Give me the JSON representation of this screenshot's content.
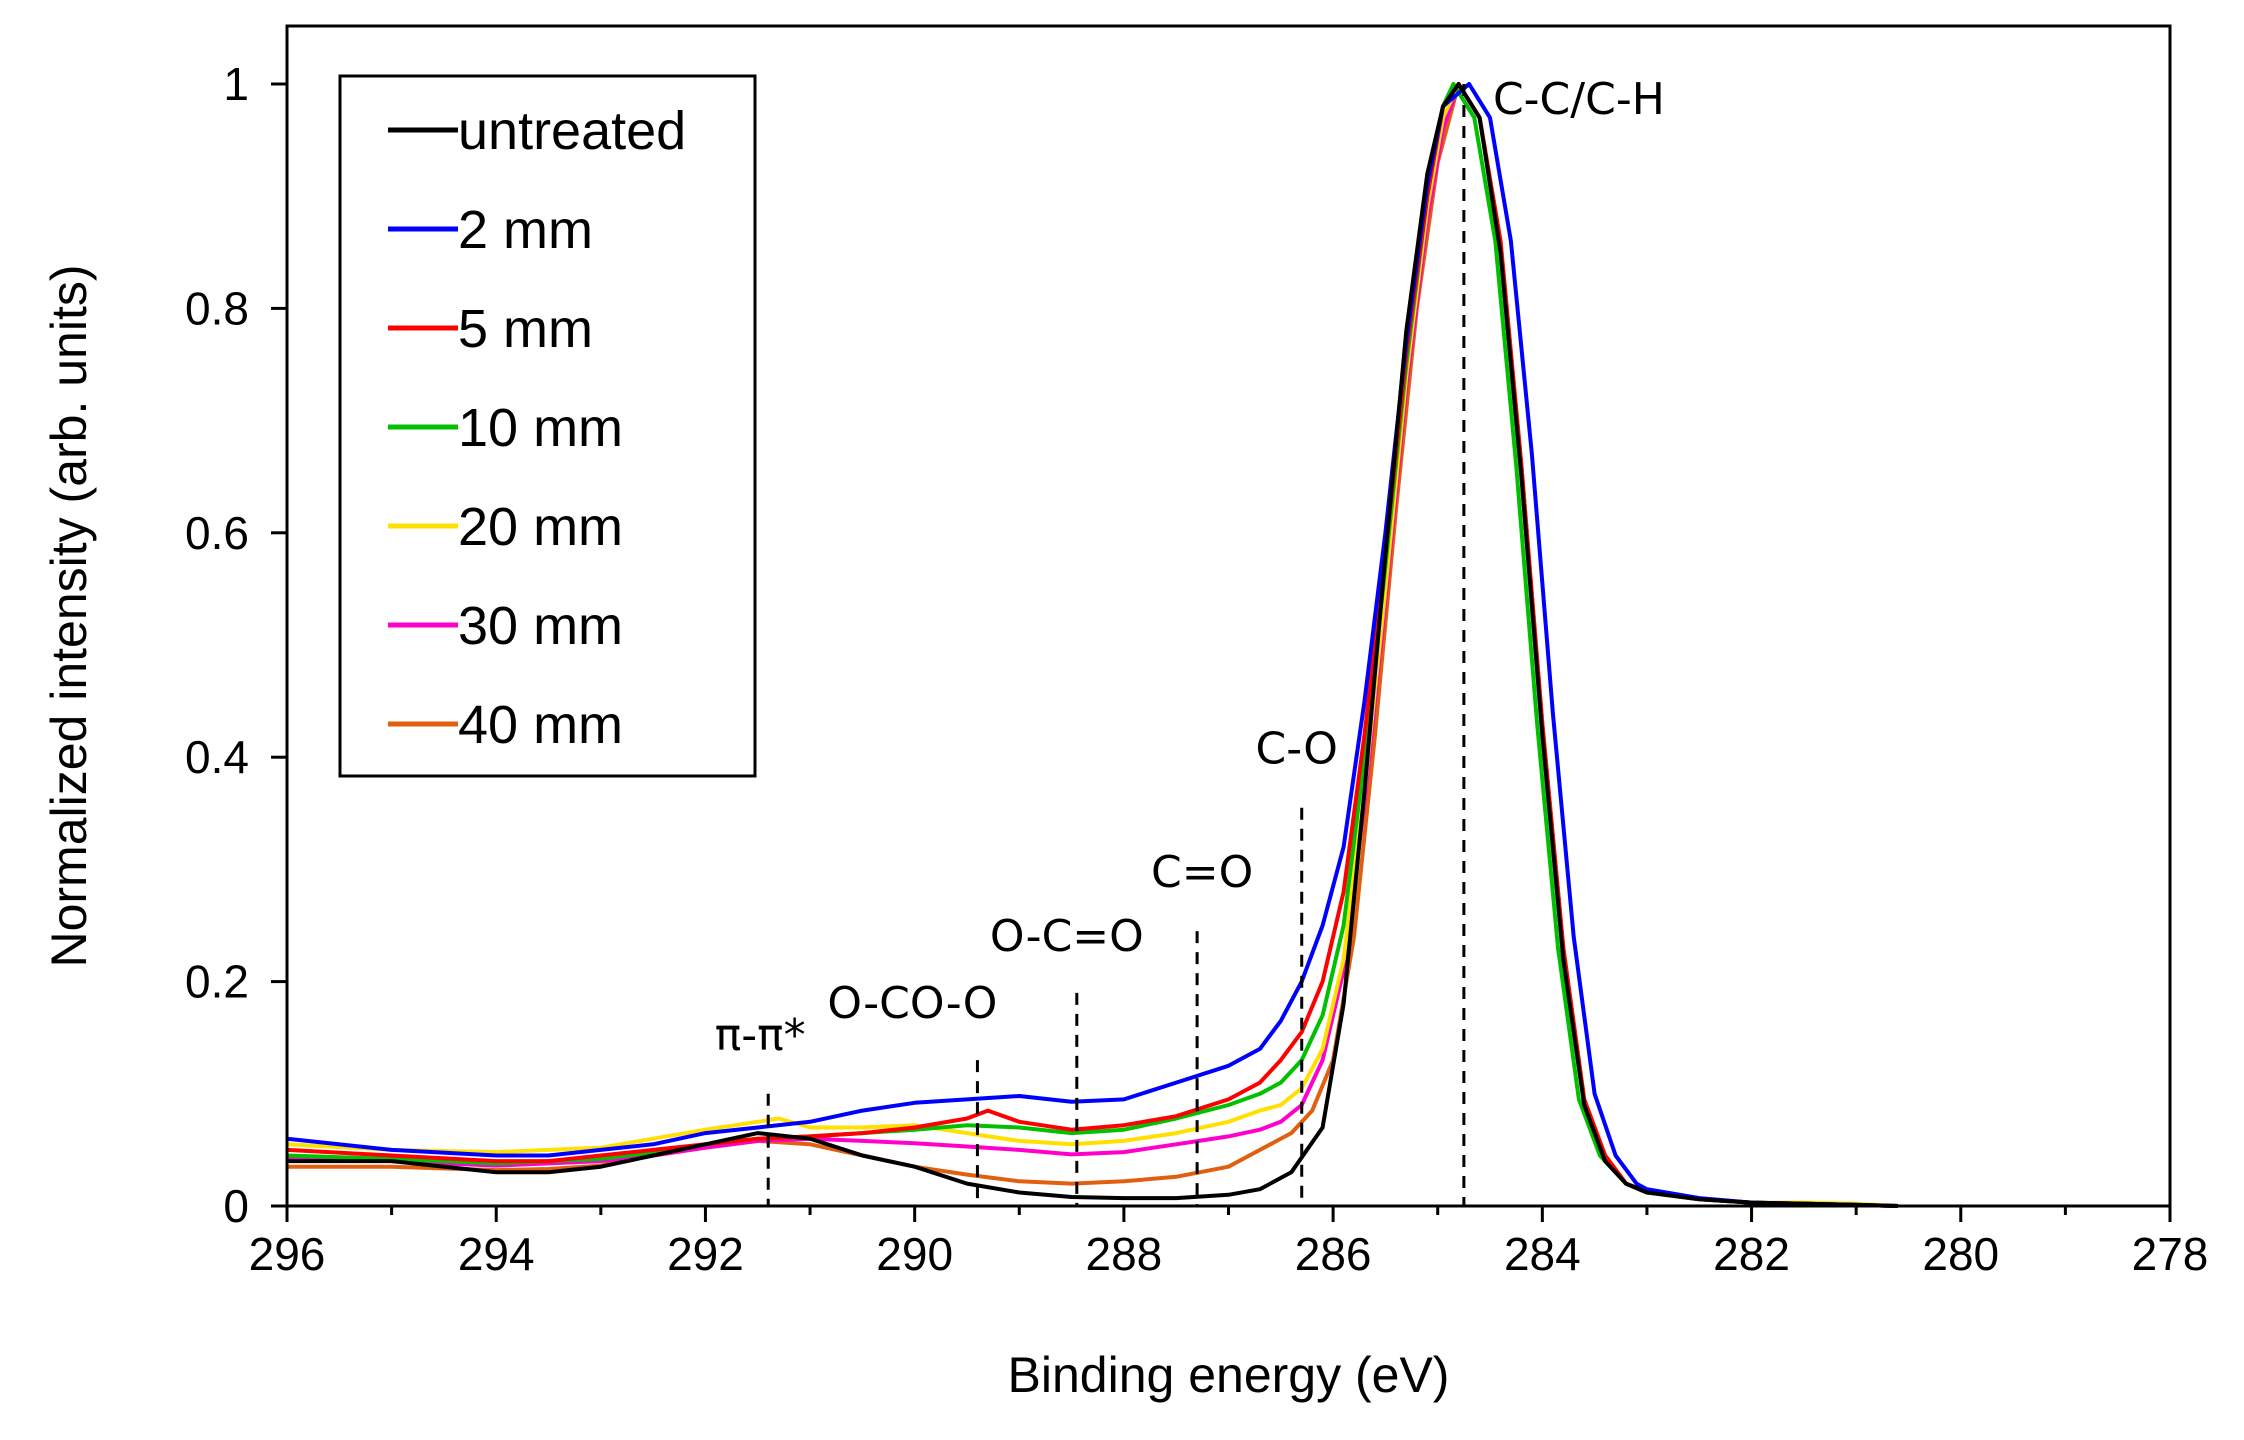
{
  "chart_data": {
    "type": "line",
    "title": "",
    "xlabel": "Binding energy (eV)",
    "ylabel": "Normalized intensity (arb. units)",
    "xlim": [
      296,
      278
    ],
    "ylim": [
      0,
      1
    ],
    "x_reversed": true,
    "xticks": [
      296,
      294,
      292,
      290,
      288,
      286,
      284,
      282,
      280,
      278
    ],
    "xtick_labels": [
      "296",
      "294",
      "292",
      "290",
      "288",
      "286",
      "284",
      "282",
      "280",
      "278"
    ],
    "yticks": [
      0,
      0.2,
      0.4,
      0.6,
      0.8,
      1
    ],
    "ytick_labels": [
      "0",
      "0.2",
      "0.4",
      "0.6",
      "0.8",
      "1"
    ],
    "grid": false,
    "legend_position": "top-left",
    "series": [
      {
        "name": "untreated",
        "color": "#000000",
        "points": [
          [
            296,
            0.04
          ],
          [
            295,
            0.04
          ],
          [
            294,
            0.03
          ],
          [
            293.5,
            0.03
          ],
          [
            293,
            0.035
          ],
          [
            292.5,
            0.045
          ],
          [
            292,
            0.055
          ],
          [
            291.5,
            0.065
          ],
          [
            291,
            0.06
          ],
          [
            290.5,
            0.045
          ],
          [
            290,
            0.035
          ],
          [
            289.5,
            0.02
          ],
          [
            289,
            0.012
          ],
          [
            288.5,
            0.008
          ],
          [
            288,
            0.007
          ],
          [
            287.5,
            0.007
          ],
          [
            287,
            0.01
          ],
          [
            286.7,
            0.015
          ],
          [
            286.4,
            0.03
          ],
          [
            286.1,
            0.07
          ],
          [
            285.9,
            0.18
          ],
          [
            285.7,
            0.37
          ],
          [
            285.5,
            0.58
          ],
          [
            285.3,
            0.78
          ],
          [
            285.1,
            0.92
          ],
          [
            284.95,
            0.98
          ],
          [
            284.8,
            1.0
          ],
          [
            284.6,
            0.97
          ],
          [
            284.4,
            0.85
          ],
          [
            284.2,
            0.65
          ],
          [
            284.0,
            0.42
          ],
          [
            283.8,
            0.22
          ],
          [
            283.6,
            0.09
          ],
          [
            283.4,
            0.04
          ],
          [
            283.2,
            0.02
          ],
          [
            283,
            0.012
          ],
          [
            282.5,
            0.006
          ],
          [
            282,
            0.003
          ],
          [
            281.5,
            0.002
          ],
          [
            281,
            0.001
          ],
          [
            280.6,
            0.0
          ]
        ]
      },
      {
        "name": "2 mm",
        "color": "#0000ff",
        "points": [
          [
            296,
            0.06
          ],
          [
            295,
            0.05
          ],
          [
            294,
            0.045
          ],
          [
            293.5,
            0.045
          ],
          [
            293,
            0.05
          ],
          [
            292.5,
            0.055
          ],
          [
            292,
            0.065
          ],
          [
            291.5,
            0.07
          ],
          [
            291,
            0.075
          ],
          [
            290.5,
            0.085
          ],
          [
            290,
            0.092
          ],
          [
            289.5,
            0.095
          ],
          [
            289,
            0.098
          ],
          [
            288.5,
            0.093
          ],
          [
            288,
            0.095
          ],
          [
            287.5,
            0.11
          ],
          [
            287,
            0.125
          ],
          [
            286.7,
            0.14
          ],
          [
            286.5,
            0.165
          ],
          [
            286.3,
            0.2
          ],
          [
            286.1,
            0.25
          ],
          [
            285.9,
            0.32
          ],
          [
            285.7,
            0.45
          ],
          [
            285.5,
            0.6
          ],
          [
            285.3,
            0.77
          ],
          [
            285.1,
            0.91
          ],
          [
            284.95,
            0.98
          ],
          [
            284.7,
            1.0
          ],
          [
            284.5,
            0.97
          ],
          [
            284.3,
            0.86
          ],
          [
            284.1,
            0.67
          ],
          [
            283.9,
            0.44
          ],
          [
            283.7,
            0.24
          ],
          [
            283.5,
            0.1
          ],
          [
            283.3,
            0.045
          ],
          [
            283.1,
            0.02
          ],
          [
            283,
            0.015
          ],
          [
            282.5,
            0.007
          ],
          [
            282,
            0.003
          ],
          [
            281,
            0.001
          ],
          [
            280.6,
            0.0
          ]
        ]
      },
      {
        "name": "5 mm",
        "color": "#ff0000",
        "points": [
          [
            296,
            0.05
          ],
          [
            295,
            0.045
          ],
          [
            294,
            0.04
          ],
          [
            293.5,
            0.04
          ],
          [
            293,
            0.045
          ],
          [
            292.5,
            0.05
          ],
          [
            292,
            0.055
          ],
          [
            291.5,
            0.06
          ],
          [
            291,
            0.062
          ],
          [
            290.5,
            0.065
          ],
          [
            290,
            0.07
          ],
          [
            289.5,
            0.078
          ],
          [
            289.3,
            0.085
          ],
          [
            289,
            0.075
          ],
          [
            288.5,
            0.068
          ],
          [
            288,
            0.072
          ],
          [
            287.5,
            0.08
          ],
          [
            287,
            0.095
          ],
          [
            286.7,
            0.11
          ],
          [
            286.5,
            0.13
          ],
          [
            286.3,
            0.155
          ],
          [
            286.1,
            0.2
          ],
          [
            285.9,
            0.28
          ],
          [
            285.7,
            0.42
          ],
          [
            285.5,
            0.58
          ],
          [
            285.3,
            0.76
          ],
          [
            285.1,
            0.9
          ],
          [
            284.95,
            0.98
          ],
          [
            284.8,
            1.0
          ],
          [
            284.6,
            0.97
          ],
          [
            284.4,
            0.86
          ],
          [
            284.2,
            0.66
          ],
          [
            284.0,
            0.43
          ],
          [
            283.8,
            0.23
          ],
          [
            283.6,
            0.095
          ],
          [
            283.4,
            0.045
          ],
          [
            283.2,
            0.02
          ],
          [
            283,
            0.013
          ],
          [
            282.5,
            0.006
          ],
          [
            282,
            0.003
          ],
          [
            281,
            0.001
          ],
          [
            280.6,
            0.0
          ]
        ]
      },
      {
        "name": "10 mm",
        "color": "#00c000",
        "points": [
          [
            296,
            0.045
          ],
          [
            295,
            0.042
          ],
          [
            294,
            0.038
          ],
          [
            293.5,
            0.04
          ],
          [
            293,
            0.042
          ],
          [
            292.5,
            0.048
          ],
          [
            292,
            0.055
          ],
          [
            291.5,
            0.06
          ],
          [
            291,
            0.062
          ],
          [
            290.5,
            0.065
          ],
          [
            290,
            0.068
          ],
          [
            289.5,
            0.072
          ],
          [
            289,
            0.07
          ],
          [
            288.5,
            0.065
          ],
          [
            288,
            0.068
          ],
          [
            287.5,
            0.078
          ],
          [
            287,
            0.09
          ],
          [
            286.7,
            0.1
          ],
          [
            286.5,
            0.11
          ],
          [
            286.3,
            0.13
          ],
          [
            286.1,
            0.17
          ],
          [
            285.9,
            0.25
          ],
          [
            285.7,
            0.4
          ],
          [
            285.5,
            0.57
          ],
          [
            285.3,
            0.75
          ],
          [
            285.1,
            0.9
          ],
          [
            284.95,
            0.98
          ],
          [
            284.85,
            1.0
          ],
          [
            284.65,
            0.97
          ],
          [
            284.45,
            0.86
          ],
          [
            284.25,
            0.66
          ],
          [
            284.05,
            0.43
          ],
          [
            283.85,
            0.23
          ],
          [
            283.65,
            0.095
          ],
          [
            283.45,
            0.045
          ],
          [
            283.2,
            0.02
          ],
          [
            283,
            0.012
          ],
          [
            282.5,
            0.006
          ],
          [
            282,
            0.003
          ],
          [
            281,
            0.001
          ],
          [
            280.6,
            0.0
          ]
        ]
      },
      {
        "name": "20 mm",
        "color": "#ffe000",
        "points": [
          [
            296,
            0.055
          ],
          [
            295,
            0.05
          ],
          [
            294,
            0.048
          ],
          [
            293.5,
            0.05
          ],
          [
            293,
            0.052
          ],
          [
            292.5,
            0.06
          ],
          [
            292,
            0.068
          ],
          [
            291.5,
            0.075
          ],
          [
            291.3,
            0.078
          ],
          [
            291,
            0.07
          ],
          [
            290.5,
            0.07
          ],
          [
            290,
            0.072
          ],
          [
            289.5,
            0.065
          ],
          [
            289,
            0.058
          ],
          [
            288.5,
            0.055
          ],
          [
            288,
            0.058
          ],
          [
            287.5,
            0.065
          ],
          [
            287,
            0.075
          ],
          [
            286.7,
            0.085
          ],
          [
            286.5,
            0.09
          ],
          [
            286.3,
            0.105
          ],
          [
            286.1,
            0.14
          ],
          [
            285.9,
            0.22
          ],
          [
            285.7,
            0.37
          ],
          [
            285.5,
            0.55
          ],
          [
            285.3,
            0.74
          ],
          [
            285.1,
            0.89
          ],
          [
            284.95,
            0.97
          ],
          [
            284.8,
            1.0
          ],
          [
            284.6,
            0.97
          ],
          [
            284.4,
            0.86
          ],
          [
            284.2,
            0.66
          ],
          [
            284.0,
            0.43
          ],
          [
            283.8,
            0.23
          ],
          [
            283.6,
            0.095
          ],
          [
            283.4,
            0.045
          ],
          [
            283.2,
            0.02
          ],
          [
            283,
            0.012
          ],
          [
            282.5,
            0.006
          ],
          [
            282,
            0.003
          ],
          [
            281.5,
            0.003
          ],
          [
            281,
            0.002
          ],
          [
            280.6,
            0.0
          ]
        ]
      },
      {
        "name": "30 mm",
        "color": "#ff00cc",
        "points": [
          [
            296,
            0.042
          ],
          [
            295,
            0.04
          ],
          [
            294,
            0.036
          ],
          [
            293.5,
            0.038
          ],
          [
            293,
            0.04
          ],
          [
            292.5,
            0.045
          ],
          [
            292,
            0.052
          ],
          [
            291.5,
            0.058
          ],
          [
            291,
            0.06
          ],
          [
            290.5,
            0.058
          ],
          [
            290,
            0.056
          ],
          [
            289.5,
            0.053
          ],
          [
            289,
            0.05
          ],
          [
            288.5,
            0.046
          ],
          [
            288,
            0.048
          ],
          [
            287.5,
            0.055
          ],
          [
            287,
            0.062
          ],
          [
            286.7,
            0.068
          ],
          [
            286.5,
            0.075
          ],
          [
            286.3,
            0.09
          ],
          [
            286.1,
            0.13
          ],
          [
            285.9,
            0.21
          ],
          [
            285.7,
            0.36
          ],
          [
            285.5,
            0.54
          ],
          [
            285.3,
            0.73
          ],
          [
            285.1,
            0.88
          ],
          [
            284.95,
            0.96
          ],
          [
            284.8,
            1.0
          ],
          [
            284.6,
            0.97
          ],
          [
            284.4,
            0.86
          ],
          [
            284.2,
            0.66
          ],
          [
            284.0,
            0.43
          ],
          [
            283.8,
            0.23
          ],
          [
            283.6,
            0.095
          ],
          [
            283.4,
            0.045
          ],
          [
            283.2,
            0.02
          ],
          [
            283,
            0.012
          ],
          [
            282.5,
            0.006
          ],
          [
            282,
            0.003
          ],
          [
            281,
            0.001
          ],
          [
            280.6,
            0.0
          ]
        ]
      },
      {
        "name": "40 mm",
        "color": "#e06010",
        "points": [
          [
            296,
            0.035
          ],
          [
            295,
            0.035
          ],
          [
            294,
            0.032
          ],
          [
            293.5,
            0.033
          ],
          [
            293,
            0.036
          ],
          [
            292.5,
            0.045
          ],
          [
            292,
            0.052
          ],
          [
            291.5,
            0.058
          ],
          [
            291,
            0.055
          ],
          [
            290.5,
            0.045
          ],
          [
            290,
            0.035
          ],
          [
            289.5,
            0.028
          ],
          [
            289,
            0.022
          ],
          [
            288.5,
            0.02
          ],
          [
            288,
            0.022
          ],
          [
            287.5,
            0.026
          ],
          [
            287,
            0.035
          ],
          [
            286.8,
            0.045
          ],
          [
            286.6,
            0.055
          ],
          [
            286.4,
            0.065
          ],
          [
            286.2,
            0.085
          ],
          [
            286.0,
            0.13
          ],
          [
            285.8,
            0.24
          ],
          [
            285.6,
            0.42
          ],
          [
            285.4,
            0.62
          ],
          [
            285.2,
            0.8
          ],
          [
            285.0,
            0.93
          ],
          [
            284.8,
            1.0
          ],
          [
            284.6,
            0.97
          ],
          [
            284.4,
            0.86
          ],
          [
            284.2,
            0.66
          ],
          [
            284.0,
            0.43
          ],
          [
            283.8,
            0.23
          ],
          [
            283.6,
            0.095
          ],
          [
            283.4,
            0.045
          ],
          [
            283.2,
            0.02
          ],
          [
            283,
            0.012
          ],
          [
            282.5,
            0.006
          ],
          [
            282,
            0.003
          ],
          [
            281,
            0.001
          ],
          [
            280.6,
            0.0
          ]
        ]
      }
    ],
    "annotations": [
      {
        "label": "C-C/C-H",
        "x": 284.75,
        "line_top": 1.0
      },
      {
        "label": "C-O",
        "x": 286.3,
        "line_top": 0.355
      },
      {
        "label": "C=O",
        "x": 287.3,
        "line_top": 0.245
      },
      {
        "label": "O-C=O",
        "x": 288.45,
        "line_top": 0.19
      },
      {
        "label": "O-CO-O",
        "x": 289.4,
        "line_top": 0.13
      },
      {
        "label": "π-π*",
        "x": 291.4,
        "line_top": 0.1
      }
    ]
  }
}
